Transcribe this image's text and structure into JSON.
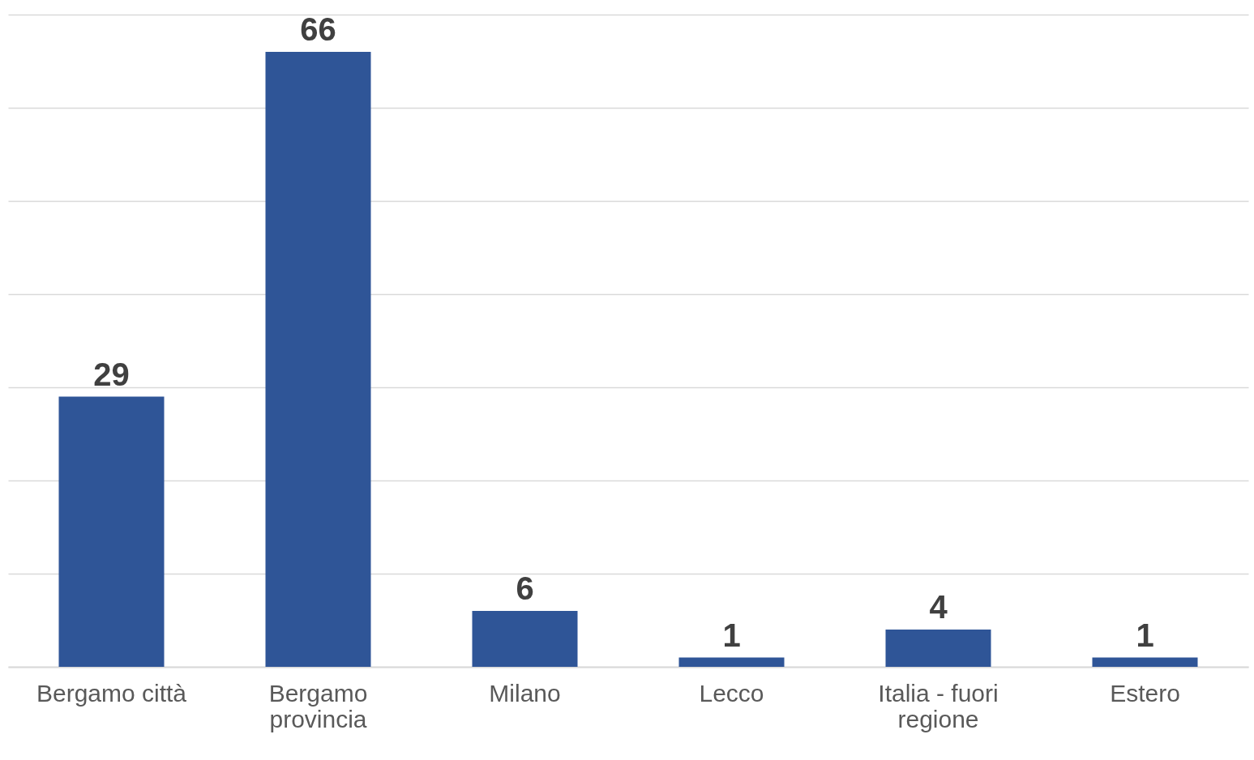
{
  "chart_data": {
    "type": "bar",
    "categories": [
      "Bergamo città",
      "Bergamo provincia",
      "Milano",
      "Lecco",
      "Italia - fuori regione",
      "Estero"
    ],
    "values": [
      29,
      66,
      6,
      1,
      4,
      1
    ],
    "color": "#2f5597",
    "ylim": [
      0,
      70
    ],
    "yticks": [
      {
        "value": 0,
        "label": null
      },
      {
        "value": 10,
        "label": null
      },
      {
        "value": 20,
        "label": null
      },
      {
        "value": 30,
        "label": null
      },
      {
        "value": 40,
        "label": null
      },
      {
        "value": 50,
        "label": null
      },
      {
        "value": 60,
        "label": null
      },
      {
        "value": 70,
        "label": null
      }
    ],
    "grid": "y",
    "tick_labels": "x",
    "data_labels": true
  }
}
